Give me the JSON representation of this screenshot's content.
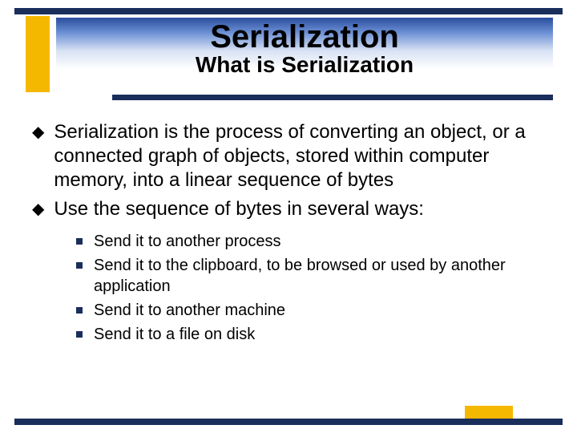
{
  "colors": {
    "dark_bar": "#1a2e5c",
    "accent_yellow": "#f5b800",
    "gradient_top": "#2a4d9e",
    "gradient_mid": "#6b8fd4",
    "gradient_light": "#d8e2f4",
    "background": "#ffffff",
    "text": "#000000"
  },
  "typography": {
    "title_fontsize": 40,
    "subtitle_fontsize": 28,
    "body_fontsize": 24,
    "sub_fontsize": 20,
    "font_family": "Arial"
  },
  "title": "Serialization",
  "subtitle": "What is Serialization",
  "bullets": [
    "Serialization is the process of converting an object, or a connected graph of objects, stored within computer memory, into a linear sequence of bytes",
    "Use the sequence of bytes in several ways:"
  ],
  "sub_bullets": [
    "Send it to another process",
    "Send it to the clipboard, to be browsed or used by another application",
    "Send it to another machine",
    "Send it to a file on disk"
  ]
}
